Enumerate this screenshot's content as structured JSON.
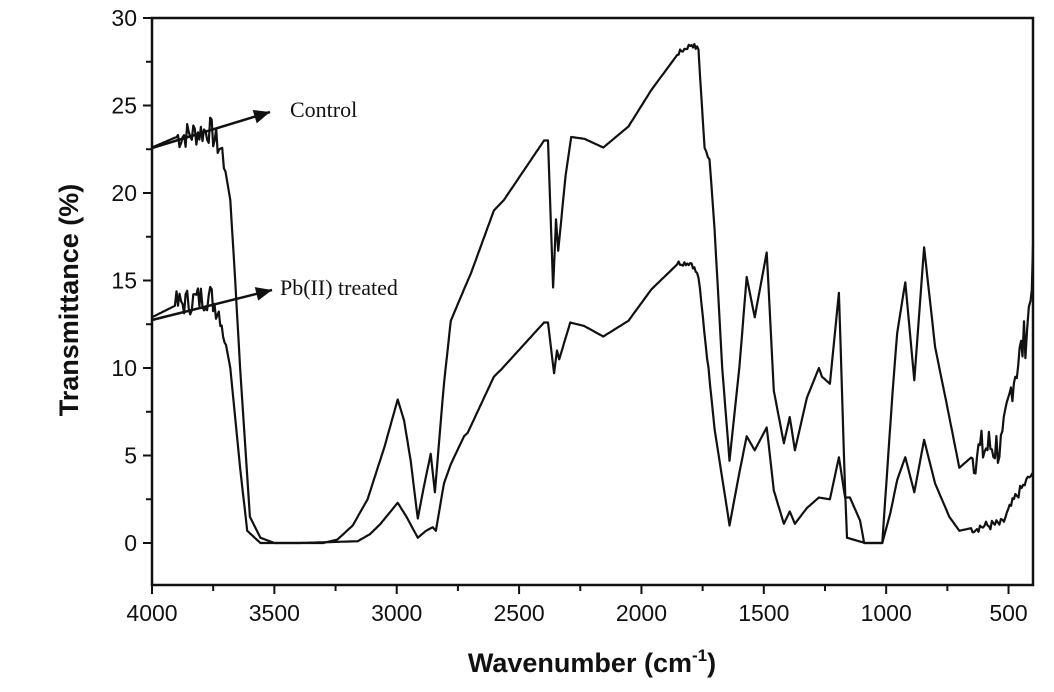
{
  "chart_data": {
    "type": "line",
    "title": "",
    "xlabel": {
      "text": "Wavenumber (cm",
      "sup": "-1",
      "end": ")"
    },
    "ylabel": "Transmittance (%)",
    "xlim": [
      4000,
      400
    ],
    "ylim": [
      -2.4,
      30
    ],
    "x_reversed": true,
    "grid": false,
    "line_color": "#111111",
    "xticks": [
      4000,
      3500,
      3000,
      2500,
      2000,
      1500,
      1000,
      500
    ],
    "yticks": [
      0,
      5,
      10,
      15,
      20,
      25,
      30
    ],
    "annotations": [
      {
        "text": "Control",
        "series": "Control"
      },
      {
        "text": "Pb(II) treated",
        "series": "Pb(II) treated"
      }
    ],
    "series": [
      {
        "name": "Control",
        "points": [
          [
            4000,
            22.6
          ],
          [
            3900,
            23.2
          ],
          [
            3800,
            23.5
          ],
          [
            3762,
            23.6
          ],
          [
            3713,
            22.3
          ],
          [
            3680,
            19.6
          ],
          [
            3660,
            15
          ],
          [
            3640,
            10
          ],
          [
            3600,
            1.5
          ],
          [
            3557,
            0.3
          ],
          [
            3500,
            0
          ],
          [
            3300,
            0
          ],
          [
            3242,
            0.2
          ],
          [
            3180,
            1
          ],
          [
            3119,
            2.5
          ],
          [
            3050,
            5.5
          ],
          [
            2996,
            8.2
          ],
          [
            2970,
            7
          ],
          [
            2943,
            4.7
          ],
          [
            2914,
            1.4
          ],
          [
            2885,
            3.5
          ],
          [
            2861,
            5.1
          ],
          [
            2844,
            2.9
          ],
          [
            2807,
            9.1
          ],
          [
            2779,
            12.7
          ],
          [
            2725,
            14.5
          ],
          [
            2697,
            15.4
          ],
          [
            2603,
            19
          ],
          [
            2562,
            19.6
          ],
          [
            2480,
            21.3
          ],
          [
            2398,
            23
          ],
          [
            2382,
            23
          ],
          [
            2361,
            14.6
          ],
          [
            2349,
            18.5
          ],
          [
            2340,
            16.7
          ],
          [
            2310,
            21
          ],
          [
            2287,
            23.2
          ],
          [
            2234,
            23.1
          ],
          [
            2156,
            22.6
          ],
          [
            2053,
            23.8
          ],
          [
            1959,
            25.9
          ],
          [
            1848,
            28
          ],
          [
            1795,
            28.5
          ],
          [
            1767,
            28.2
          ],
          [
            1742,
            22.5
          ],
          [
            1722,
            22
          ],
          [
            1701,
            17.9
          ],
          [
            1670,
            10
          ],
          [
            1640,
            4.7
          ],
          [
            1600,
            10
          ],
          [
            1570,
            15.2
          ],
          [
            1537,
            12.9
          ],
          [
            1488,
            16.6
          ],
          [
            1459,
            8.7
          ],
          [
            1418,
            5.7
          ],
          [
            1394,
            7.2
          ],
          [
            1373,
            5.3
          ],
          [
            1324,
            8.3
          ],
          [
            1275,
            10
          ],
          [
            1262,
            9.5
          ],
          [
            1230,
            9.1
          ],
          [
            1193,
            14.3
          ],
          [
            1168,
            3
          ],
          [
            1160,
            0.3
          ],
          [
            1086,
            0
          ],
          [
            1016,
            0
          ],
          [
            975,
            8.4
          ],
          [
            955,
            12
          ],
          [
            922,
            14.9
          ],
          [
            885,
            9.3
          ],
          [
            845,
            16.9
          ],
          [
            800,
            11.2
          ],
          [
            742,
            7.2
          ],
          [
            701,
            4.3
          ],
          [
            635,
            5.1
          ],
          [
            580,
            5.5
          ],
          [
            525,
            5.5
          ],
          [
            484,
            9.3
          ],
          [
            431,
            11.8
          ],
          [
            410,
            14
          ],
          [
            400,
            17
          ]
        ]
      },
      {
        "name": "Pb(II) treated",
        "points": [
          [
            4000,
            12.9
          ],
          [
            3900,
            13.6
          ],
          [
            3800,
            14
          ],
          [
            3762,
            14.1
          ],
          [
            3721,
            13.1
          ],
          [
            3680,
            10
          ],
          [
            3640,
            4.3
          ],
          [
            3611,
            0.7
          ],
          [
            3557,
            0
          ],
          [
            3400,
            0
          ],
          [
            3160,
            0.1
          ],
          [
            3110,
            0.5
          ],
          [
            3066,
            1.1
          ],
          [
            2996,
            2.3
          ],
          [
            2960,
            1.5
          ],
          [
            2914,
            0.3
          ],
          [
            2880,
            0.7
          ],
          [
            2853,
            0.9
          ],
          [
            2840,
            0.7
          ],
          [
            2807,
            3.4
          ],
          [
            2779,
            4.5
          ],
          [
            2725,
            6.1
          ],
          [
            2710,
            6.3
          ],
          [
            2603,
            9.5
          ],
          [
            2574,
            9.9
          ],
          [
            2398,
            12.6
          ],
          [
            2382,
            12.6
          ],
          [
            2357,
            9.7
          ],
          [
            2345,
            11
          ],
          [
            2336,
            10.5
          ],
          [
            2291,
            12.6
          ],
          [
            2234,
            12.4
          ],
          [
            2156,
            11.8
          ],
          [
            2053,
            12.7
          ],
          [
            1959,
            14.5
          ],
          [
            1848,
            16
          ],
          [
            1795,
            16
          ],
          [
            1767,
            15.2
          ],
          [
            1726,
            9.9
          ],
          [
            1701,
            6.5
          ],
          [
            1640,
            1
          ],
          [
            1600,
            4
          ],
          [
            1570,
            6.1
          ],
          [
            1537,
            5.3
          ],
          [
            1488,
            6.6
          ],
          [
            1459,
            3
          ],
          [
            1418,
            1.1
          ],
          [
            1394,
            1.8
          ],
          [
            1373,
            1.1
          ],
          [
            1324,
            2
          ],
          [
            1275,
            2.6
          ],
          [
            1230,
            2.5
          ],
          [
            1193,
            4.9
          ],
          [
            1168,
            2.6
          ],
          [
            1148,
            2.6
          ],
          [
            1107,
            1.3
          ],
          [
            1090,
            0
          ],
          [
            1016,
            0
          ],
          [
            983,
            1.7
          ],
          [
            955,
            3.6
          ],
          [
            922,
            4.9
          ],
          [
            885,
            2.9
          ],
          [
            845,
            5.9
          ],
          [
            800,
            3.4
          ],
          [
            742,
            1.5
          ],
          [
            701,
            0.7
          ],
          [
            635,
            0.9
          ],
          [
            525,
            1.1
          ],
          [
            472,
            2.6
          ],
          [
            402,
            4
          ]
        ]
      }
    ]
  }
}
